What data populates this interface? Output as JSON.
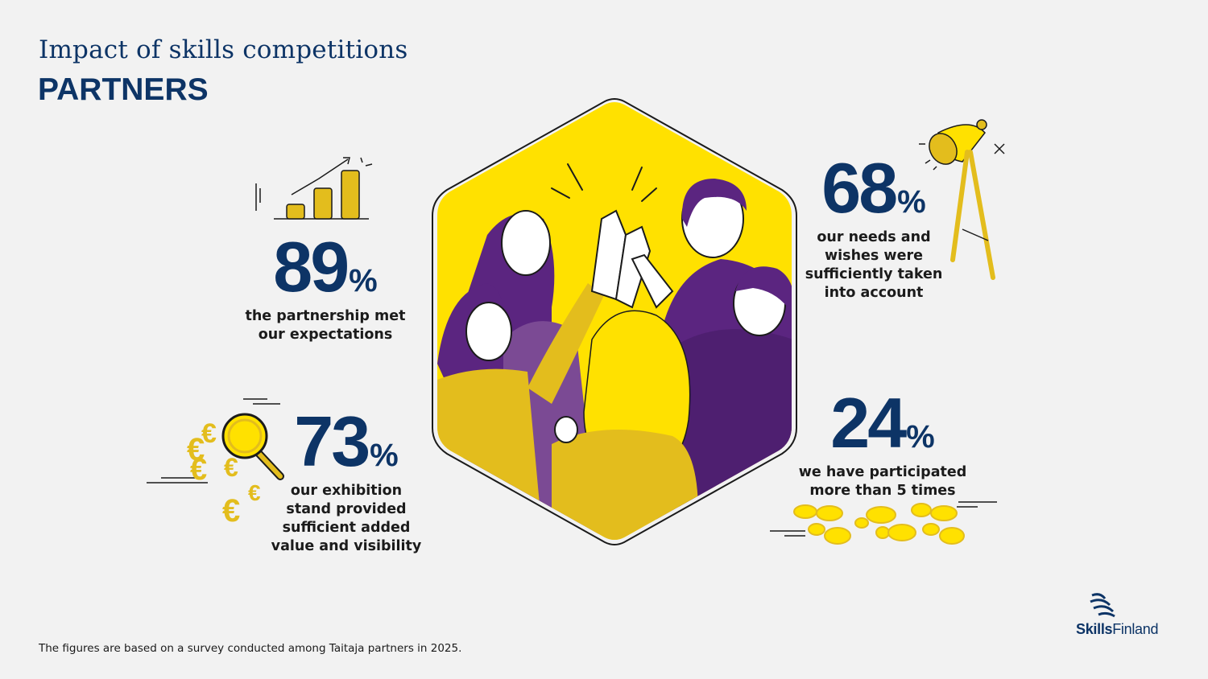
{
  "header": {
    "title": "Impact of skills competitions",
    "subtitle": "PARTNERS"
  },
  "stats": [
    {
      "value": "89",
      "unit": "%",
      "description": [
        "the partnership met",
        "our expectations"
      ]
    },
    {
      "value": "68",
      "unit": "%",
      "description": [
        "our needs and",
        "wishes were",
        "sufficiently taken",
        "into account"
      ]
    },
    {
      "value": "73",
      "unit": "%",
      "description": [
        "our exhibition",
        "stand provided",
        "sufficient added",
        "value and visibility"
      ]
    },
    {
      "value": "24",
      "unit": "%",
      "description": [
        "we have participated",
        "more than 5 times"
      ]
    }
  ],
  "footnote": "The figures are based on a survey conducted among Taitaja partners in 2025.",
  "logo": {
    "bold": "Skills",
    "regular": "Finland"
  },
  "icons": [
    "bar-chart-growth-icon",
    "spotlight-icon",
    "magnifier-euro-icon",
    "footprints-icon",
    "high-five-illustration"
  ],
  "colors": {
    "navy": "#0d3466",
    "yellow": "#ffe100",
    "gold": "#e3bd1d",
    "purple": "#5b2580",
    "light_purple": "#7b4a94"
  }
}
